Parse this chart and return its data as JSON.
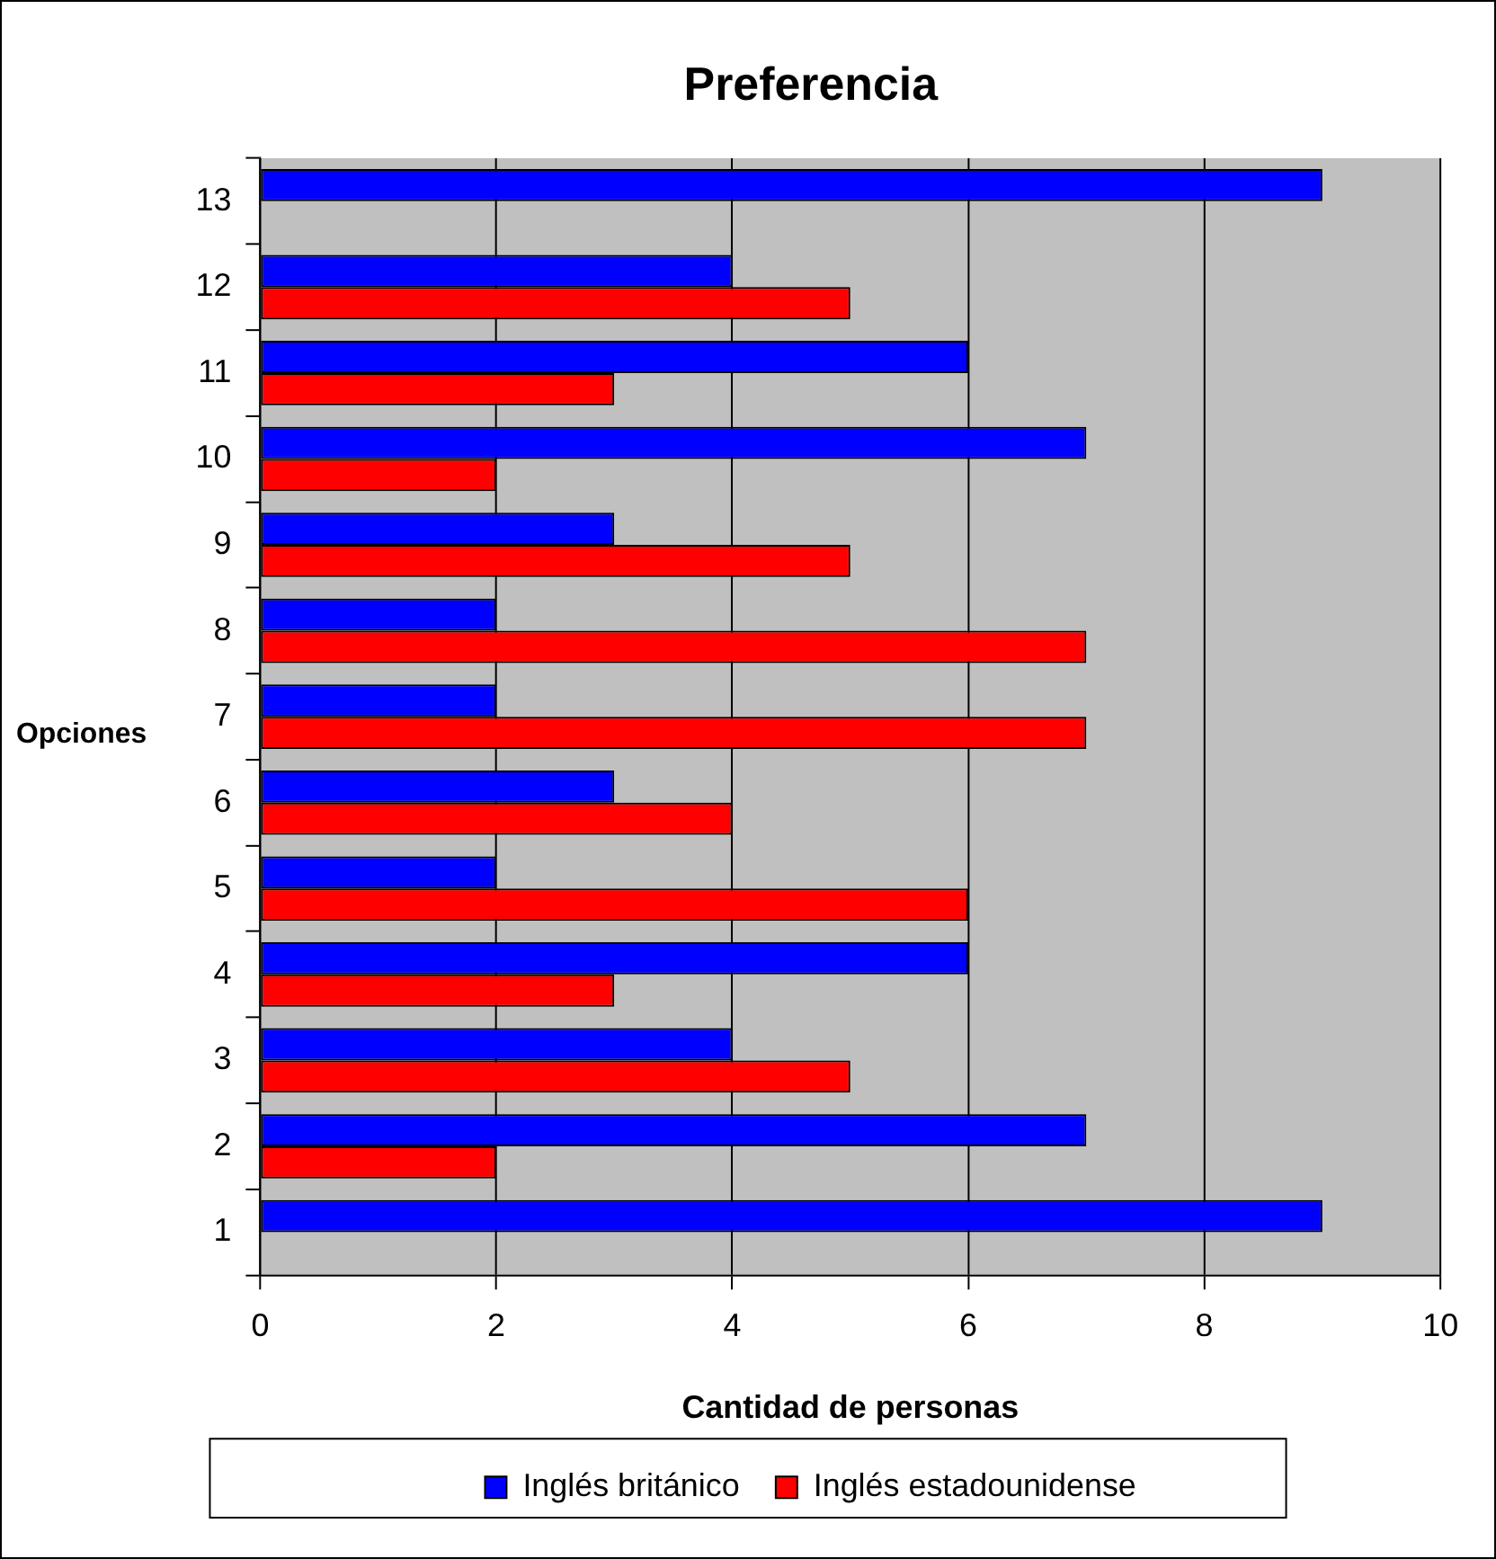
{
  "chart_data": {
    "type": "bar",
    "orientation": "horizontal",
    "title": "Preferencia",
    "xlabel": "Cantidad de personas",
    "ylabel": "Opciones",
    "categories": [
      "13",
      "12",
      "11",
      "10",
      "9",
      "8",
      "7",
      "6",
      "5",
      "4",
      "3",
      "2",
      "1"
    ],
    "series": [
      {
        "name": "Inglés británico",
        "color": "#0000ff",
        "values": [
          9,
          4,
          6,
          7,
          3,
          2,
          2,
          3,
          2,
          6,
          4,
          7,
          9
        ]
      },
      {
        "name": "Inglés estadounidense",
        "color": "#ff0000",
        "values": [
          0,
          5,
          3,
          2,
          5,
          7,
          7,
          4,
          6,
          3,
          5,
          2,
          0
        ]
      }
    ],
    "xlim": [
      0,
      10
    ],
    "xticks": [
      0,
      2,
      4,
      6,
      8,
      10
    ],
    "grid": "x",
    "legend": "bottom"
  }
}
